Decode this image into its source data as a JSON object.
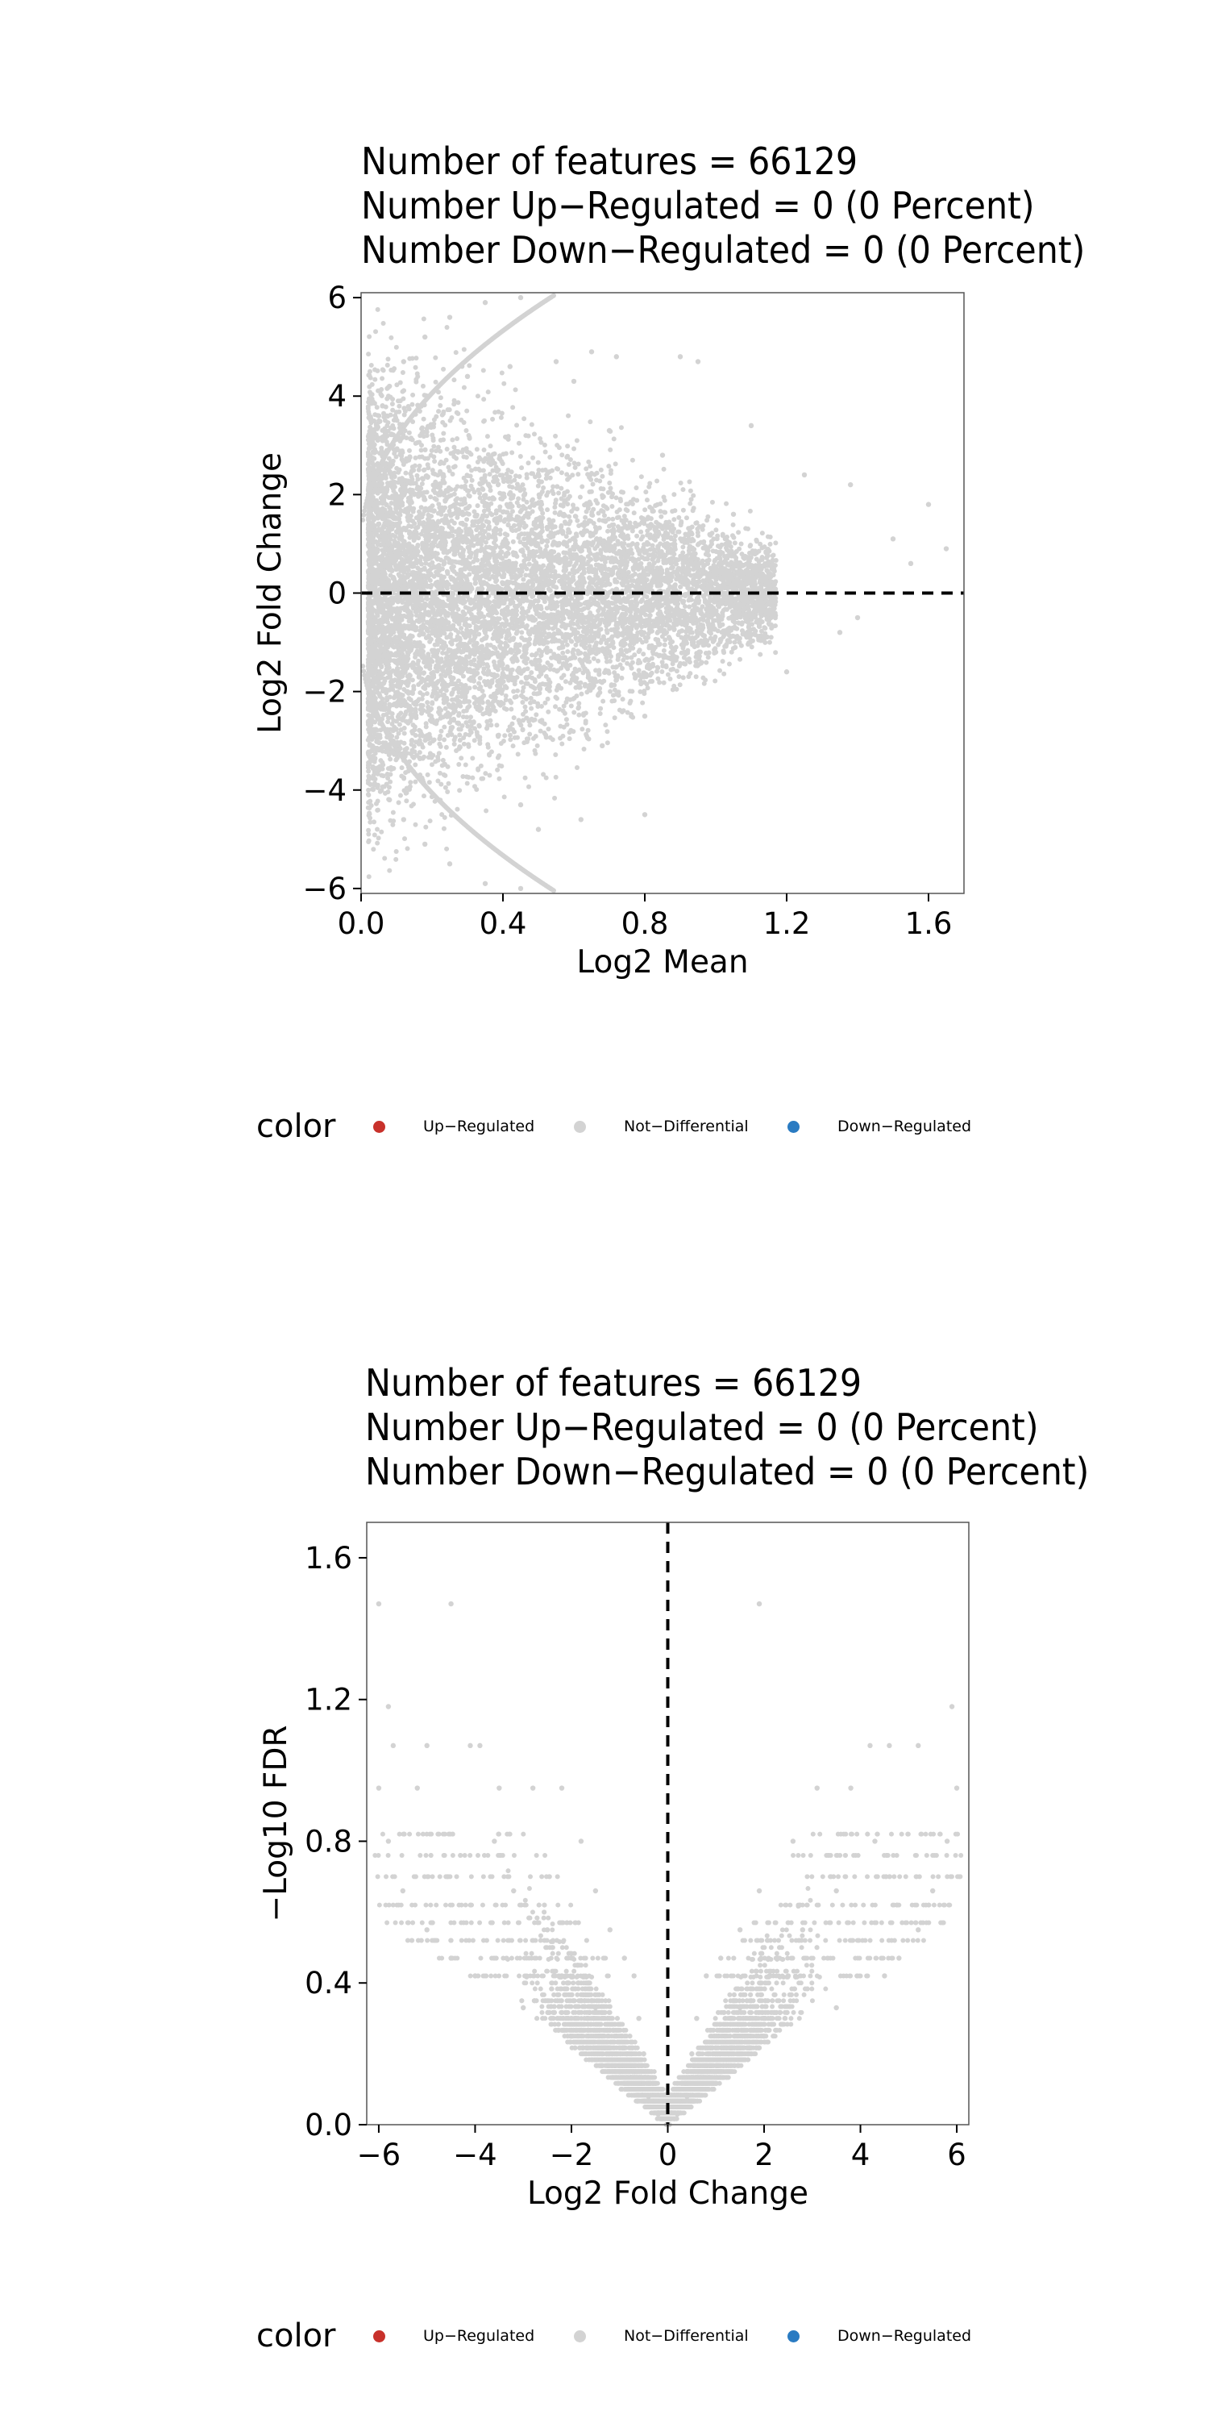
{
  "chart_data": [
    {
      "type": "scatter",
      "title_lines": [
        "Number of features = 66129",
        "Number Up−Regulated = 0 (0 Percent)",
        "Number Down−Regulated = 0 (0 Percent)"
      ],
      "xlabel": "Log2 Mean",
      "ylabel": "Log2 Fold Change",
      "xlim": [
        0.0,
        1.7
      ],
      "ylim": [
        -6.1,
        6.1
      ],
      "xticks": [
        "0.0",
        "0.4",
        "0.8",
        "1.2",
        "1.6"
      ],
      "yticks": [
        "6",
        "4",
        "2",
        "0",
        "−2",
        "−4",
        "−6"
      ],
      "reference_line": {
        "axis": "y",
        "value": 0,
        "style": "dashed"
      },
      "grid": false,
      "point_color": "#d3d3d3",
      "series": [
        {
          "name": "Not−Differential",
          "points": [
            [
              0.03,
              3.2
            ],
            [
              0.05,
              3.6
            ],
            [
              0.08,
              4.2
            ],
            [
              0.12,
              4.7
            ],
            [
              0.18,
              5.2
            ],
            [
              0.25,
              5.6
            ],
            [
              0.35,
              5.9
            ],
            [
              0.45,
              6.0
            ],
            [
              0.03,
              -3.2
            ],
            [
              0.05,
              -3.6
            ],
            [
              0.08,
              -4.2
            ],
            [
              0.12,
              -4.6
            ],
            [
              0.18,
              -5.1
            ],
            [
              0.25,
              -5.5
            ],
            [
              0.35,
              -5.9
            ],
            [
              0.45,
              -6.0
            ],
            [
              0.3,
              4.4
            ],
            [
              0.42,
              4.6
            ],
            [
              0.55,
              4.7
            ],
            [
              0.65,
              4.9
            ],
            [
              0.72,
              4.8
            ],
            [
              0.9,
              4.8
            ],
            [
              0.95,
              4.7
            ],
            [
              0.6,
              4.3
            ],
            [
              0.5,
              -4.8
            ],
            [
              0.62,
              -4.6
            ],
            [
              0.8,
              -4.5
            ],
            [
              0.45,
              -4.3
            ],
            [
              1.1,
              3.4
            ],
            [
              1.25,
              2.4
            ],
            [
              1.38,
              2.2
            ],
            [
              1.5,
              1.1
            ],
            [
              1.6,
              1.8
            ],
            [
              1.65,
              0.9
            ],
            [
              1.55,
              0.6
            ],
            [
              1.4,
              -0.5
            ],
            [
              1.2,
              -1.6
            ],
            [
              1.35,
              -0.8
            ],
            [
              1.05,
              1.6
            ],
            [
              1.0,
              -1.2
            ],
            [
              0.85,
              2.8
            ],
            [
              0.8,
              -2.5
            ],
            [
              0.7,
              3.3
            ],
            [
              0.68,
              -3.1
            ]
          ]
        },
        {
          "name": "Up−Regulated",
          "points": []
        },
        {
          "name": "Down−Regulated",
          "points": []
        }
      ]
    },
    {
      "type": "scatter",
      "title_lines": [
        "Number of features = 66129",
        "Number Up−Regulated = 0 (0 Percent)",
        "Number Down−Regulated = 0 (0 Percent)"
      ],
      "xlabel": "Log2 Fold Change",
      "ylabel": "−Log10 FDR",
      "xlim": [
        -6.25,
        6.25
      ],
      "ylim": [
        0.0,
        1.7
      ],
      "xticks": [
        "−6",
        "−4",
        "−2",
        "0",
        "2",
        "4",
        "6"
      ],
      "yticks": [
        "1.6",
        "1.2",
        "0.8",
        "0.4",
        "0.0"
      ],
      "reference_line": {
        "axis": "x",
        "value": 0,
        "style": "dashed"
      },
      "grid": false,
      "point_color": "#d3d3d3",
      "series": [
        {
          "name": "Not−Differential",
          "points": [
            [
              -6.0,
              1.47
            ],
            [
              -4.5,
              1.47
            ],
            [
              1.9,
              1.47
            ],
            [
              -5.8,
              1.18
            ],
            [
              5.9,
              1.18
            ],
            [
              -5.7,
              1.07
            ],
            [
              -5.0,
              1.07
            ],
            [
              -4.1,
              1.07
            ],
            [
              -3.9,
              1.07
            ],
            [
              4.2,
              1.07
            ],
            [
              4.6,
              1.07
            ],
            [
              5.2,
              1.07
            ],
            [
              -6.0,
              0.95
            ],
            [
              -5.2,
              0.95
            ],
            [
              -3.5,
              0.95
            ],
            [
              -2.8,
              0.95
            ],
            [
              -2.2,
              0.95
            ],
            [
              3.1,
              0.95
            ],
            [
              3.8,
              0.95
            ],
            [
              6.0,
              0.95
            ],
            [
              -5.8,
              0.8
            ],
            [
              -3.6,
              0.8
            ],
            [
              -1.8,
              0.8
            ],
            [
              2.6,
              0.8
            ],
            [
              4.3,
              0.8
            ],
            [
              5.8,
              0.8
            ],
            [
              -5.5,
              0.66
            ],
            [
              -3.2,
              0.66
            ],
            [
              -1.5,
              0.66
            ],
            [
              1.9,
              0.66
            ],
            [
              3.5,
              0.66
            ],
            [
              5.5,
              0.66
            ],
            [
              -5.0,
              0.55
            ],
            [
              -2.5,
              0.55
            ],
            [
              -1.2,
              0.55
            ],
            [
              1.5,
              0.55
            ],
            [
              2.8,
              0.55
            ],
            [
              5.2,
              0.55
            ],
            [
              -4.5,
              0.47
            ],
            [
              -2.0,
              0.47
            ],
            [
              -0.9,
              0.47
            ],
            [
              1.1,
              0.47
            ],
            [
              2.3,
              0.47
            ],
            [
              4.8,
              0.47
            ],
            [
              -4.0,
              0.42
            ],
            [
              -2.2,
              0.42
            ],
            [
              -0.7,
              0.42
            ],
            [
              0.8,
              0.42
            ],
            [
              2.5,
              0.42
            ],
            [
              4.5,
              0.42
            ],
            [
              -3.0,
              0.33
            ],
            [
              -1.5,
              0.33
            ],
            [
              -0.6,
              0.3
            ],
            [
              0.6,
              0.3
            ],
            [
              1.5,
              0.33
            ],
            [
              3.5,
              0.33
            ],
            [
              -2.0,
              0.25
            ],
            [
              -0.5,
              0.2
            ],
            [
              0.5,
              0.2
            ],
            [
              2.0,
              0.25
            ],
            [
              -1.0,
              0.15
            ],
            [
              1.0,
              0.15
            ],
            [
              -0.4,
              0.08
            ],
            [
              0.4,
              0.08
            ],
            [
              -0.2,
              0.03
            ],
            [
              0.2,
              0.03
            ]
          ]
        },
        {
          "name": "Up−Regulated",
          "points": []
        },
        {
          "name": "Down−Regulated",
          "points": []
        }
      ]
    }
  ],
  "legends": [
    {
      "title": "color",
      "items": [
        {
          "label": "Up−Regulated",
          "color": "#c8312b"
        },
        {
          "label": "Not−Differential",
          "color": "#d3d3d3"
        },
        {
          "label": "Down−Regulated",
          "color": "#2a7bc2"
        }
      ]
    },
    {
      "title": "color",
      "items": [
        {
          "label": "Up−Regulated",
          "color": "#c8312b"
        },
        {
          "label": "Not−Differential",
          "color": "#d3d3d3"
        },
        {
          "label": "Down−Regulated",
          "color": "#2a7bc2"
        }
      ]
    }
  ]
}
